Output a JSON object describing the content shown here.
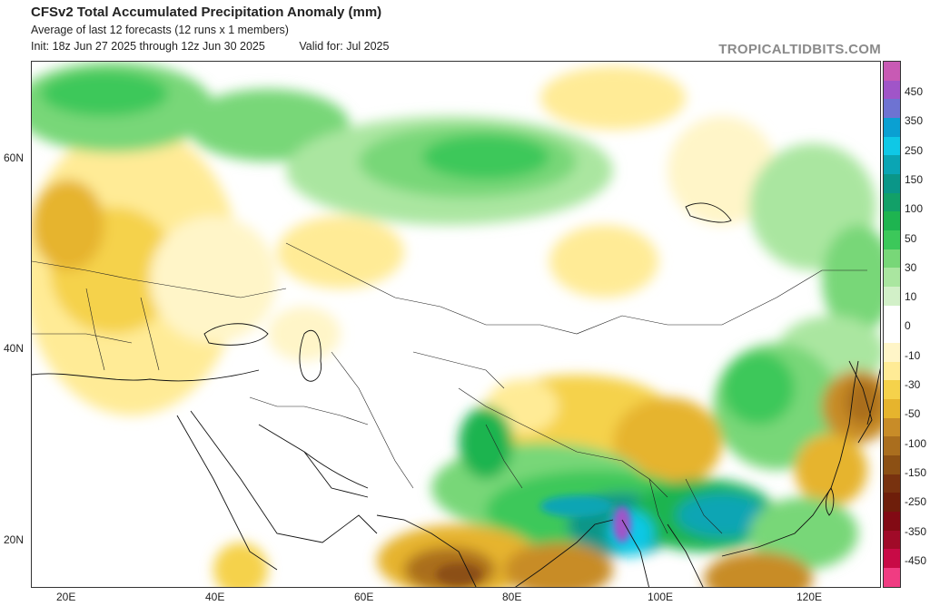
{
  "header": {
    "title": "CFSv2 Total Accumulated Precipitation Anomaly (mm)",
    "subtitle": "Average of last 12 forecasts (12 runs x 1 members)",
    "init": "Init: 18z Jun 27 2025 through 12z Jun 30 2025",
    "valid": "Valid for: Jul 2025"
  },
  "brand": "TROPICALTIDBITS.COM",
  "map": {
    "lat_labels": [
      "60N",
      "40N",
      "20N"
    ],
    "lon_labels": [
      "20E",
      "40E",
      "60E",
      "80E",
      "100E",
      "120E"
    ],
    "extent": {
      "lon": [
        15,
        130
      ],
      "lat": [
        15,
        70
      ]
    }
  },
  "colorbar": {
    "labels": [
      "450",
      "350",
      "250",
      "150",
      "100",
      "50",
      "30",
      "10",
      "0",
      "-10",
      "-30",
      "-50",
      "-100",
      "-150",
      "-250",
      "-350",
      "-450"
    ],
    "colors": [
      "#c85ab4",
      "#a055c8",
      "#6e73d2",
      "#0aa0d2",
      "#0fc8e6",
      "#0aa5b4",
      "#0a9688",
      "#12a068",
      "#1eb450",
      "#3cc85a",
      "#78d778",
      "#aae6a0",
      "#d2f0c8",
      "#ffffff",
      "#ffffff",
      "#fff5c8",
      "#ffeb96",
      "#f5d24b",
      "#e6b42d",
      "#c88c28",
      "#aa6e1e",
      "#8c5014",
      "#78320f",
      "#6e1e0a",
      "#820a14",
      "#a00a28",
      "#c80a46",
      "#f03c82"
    ]
  }
}
